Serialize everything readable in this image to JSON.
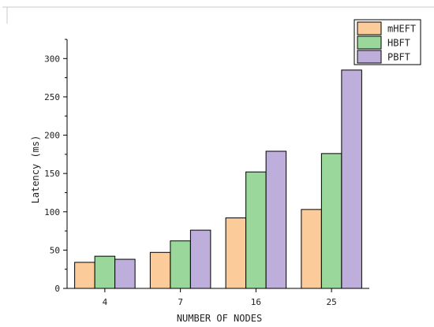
{
  "chart_data": {
    "type": "bar",
    "categories": [
      "4",
      "7",
      "16",
      "25"
    ],
    "series": [
      {
        "name": "mHEFT",
        "values": [
          34,
          47,
          92,
          103
        ],
        "color": "#fccb9a"
      },
      {
        "name": "HBFT",
        "values": [
          42,
          62,
          152,
          176
        ],
        "color": "#9ad79b"
      },
      {
        "name": "PBFT",
        "values": [
          38,
          76,
          179,
          285
        ],
        "color": "#bdaedb"
      }
    ],
    "title": "",
    "xlabel": "NUMBER OF NODES",
    "ylabel": "Latency (ms)",
    "ylim": [
      0,
      325
    ],
    "yticks": [
      0,
      50,
      100,
      150,
      200,
      250,
      300
    ],
    "grid": false,
    "legend": "top-right"
  }
}
